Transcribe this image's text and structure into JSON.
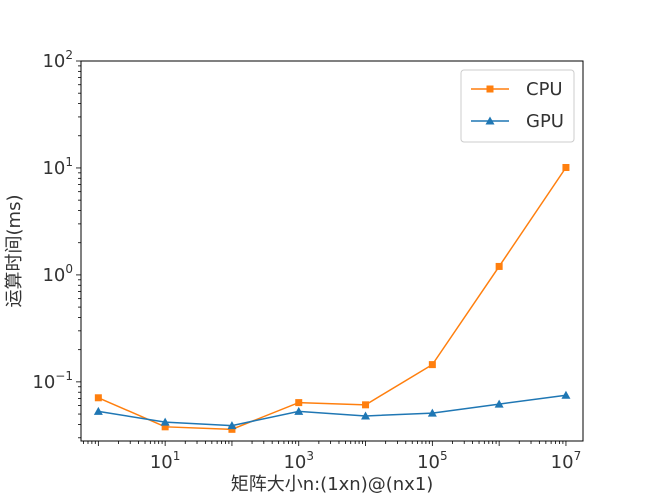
{
  "chart_data": {
    "type": "line",
    "title": "",
    "xlabel": "矩阵大小n:(1xn)@(nx1)",
    "ylabel": "运算时间(ms)",
    "xscale": "log",
    "yscale": "log",
    "xlim": [
      0.55,
      18000000
    ],
    "ylim": [
      0.028,
      100
    ],
    "x": [
      1,
      10,
      100,
      1000,
      10000,
      100000,
      1000000,
      10000000
    ],
    "x_ticks": [
      {
        "value": 10,
        "base": "10",
        "exp": "1"
      },
      {
        "value": 1000,
        "base": "10",
        "exp": "3"
      },
      {
        "value": 100000,
        "base": "10",
        "exp": "5"
      },
      {
        "value": 10000000,
        "base": "10",
        "exp": "7"
      }
    ],
    "y_ticks": [
      {
        "value": 0.1,
        "base": "10",
        "exp": "−1"
      },
      {
        "value": 1,
        "base": "10",
        "exp": "0"
      },
      {
        "value": 10,
        "base": "10",
        "exp": "1"
      },
      {
        "value": 100,
        "base": "10",
        "exp": "2"
      }
    ],
    "series": [
      {
        "name": "CPU",
        "color": "#ff7f0e",
        "marker": "square",
        "values": [
          0.071,
          0.038,
          0.036,
          0.064,
          0.061,
          0.145,
          1.2,
          10.1
        ]
      },
      {
        "name": "GPU",
        "color": "#1f77b4",
        "marker": "triangle",
        "values": [
          0.053,
          0.042,
          0.039,
          0.053,
          0.048,
          0.051,
          0.062,
          0.075
        ]
      }
    ],
    "legend_position": "top-right",
    "grid": false
  }
}
